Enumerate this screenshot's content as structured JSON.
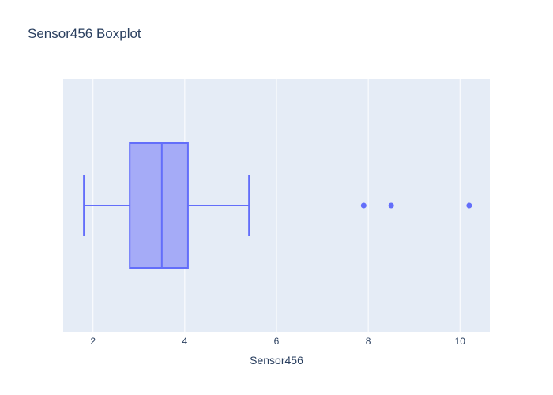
{
  "chart_data": {
    "type": "box",
    "title": "Sensor456 Boxplot",
    "xlabel": "Sensor456",
    "ylabel": "",
    "xlim": [
      1.35,
      10.65
    ],
    "xticks": [
      2,
      4,
      6,
      8,
      10
    ],
    "grid": true,
    "orientation": "horizontal",
    "series": [
      {
        "lowerfence": 1.8,
        "q1": 2.8,
        "median": 3.5,
        "q3": 4.07,
        "upperfence": 5.4,
        "outliers": [
          7.9,
          8.5,
          10.2
        ]
      }
    ],
    "colors": {
      "box_fill": "#a5abf7",
      "box_line": "#636efa",
      "plot_bg": "#e5ecf6",
      "grid": "#ffffff",
      "text": "#2a3f5f"
    }
  }
}
